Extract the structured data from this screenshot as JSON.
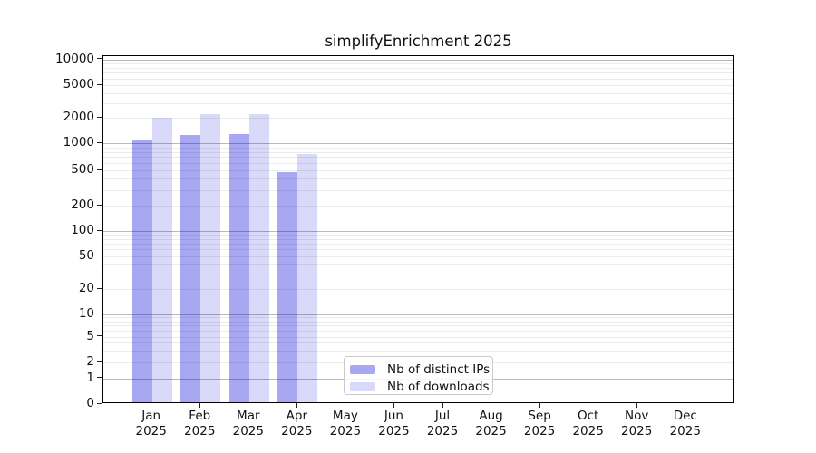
{
  "title": "simplifyEnrichment 2025",
  "chart_data": {
    "type": "bar",
    "title": "simplifyEnrichment 2025",
    "categories": [
      "Jan",
      "Feb",
      "Mar",
      "Apr",
      "May",
      "Jun",
      "Jul",
      "Aug",
      "Sep",
      "Oct",
      "Nov",
      "Dec"
    ],
    "year": "2025",
    "series": [
      {
        "name": "Nb of distinct IPs",
        "color": "#a8a8f2",
        "values": [
          1110,
          1240,
          1270,
          480,
          0,
          0,
          0,
          0,
          0,
          0,
          0,
          0
        ]
      },
      {
        "name": "Nb of downloads",
        "color": "#d9d9f9",
        "values": [
          2020,
          2210,
          2230,
          750,
          0,
          0,
          0,
          0,
          0,
          0,
          0,
          0
        ]
      }
    ],
    "yticks": [
      0,
      1,
      2,
      5,
      10,
      20,
      50,
      100,
      200,
      500,
      1000,
      2000,
      5000,
      10000
    ],
    "ylim": [
      0,
      10000
    ],
    "scale": "log-like",
    "grid": true,
    "legend_position": "bottom-center",
    "xlabel": "",
    "ylabel": ""
  }
}
